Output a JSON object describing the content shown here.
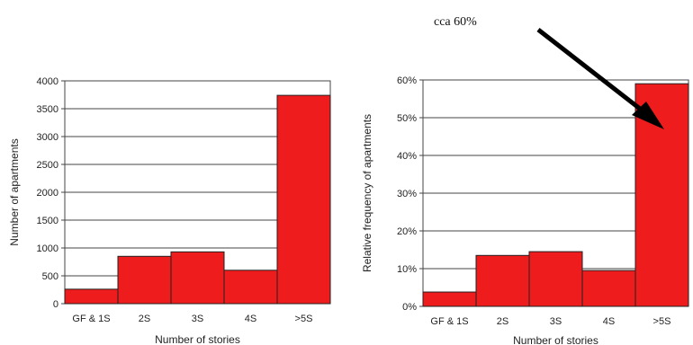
{
  "annotation": {
    "text": "cca 60%"
  },
  "colors": {
    "bar_fill": "#ee1c1c",
    "bar_stroke": "#222222",
    "grid": "#444444",
    "plot_bg": "#ffffff"
  },
  "chart_data": [
    {
      "type": "bar",
      "title": "",
      "xlabel": "Number of stories",
      "ylabel": "Number of apartments",
      "categories": [
        "GF & 1S",
        "2S",
        "3S",
        "4S",
        ">5S"
      ],
      "values": [
        260,
        850,
        930,
        600,
        3740
      ],
      "ylim": [
        0,
        4000
      ],
      "yticks": [
        0,
        500,
        1000,
        1500,
        2000,
        2500,
        3000,
        3500,
        4000
      ],
      "ytick_labels": [
        "0",
        "500",
        "1000",
        "1500",
        "2000",
        "2500",
        "3000",
        "3500",
        "4000"
      ],
      "grid": true
    },
    {
      "type": "bar",
      "title": "",
      "xlabel": "Number of stories",
      "ylabel": "Relative frequency of apartments",
      "categories": [
        "GF & 1S",
        "2S",
        "3S",
        "4S",
        ">5S"
      ],
      "values": [
        3.8,
        13.5,
        14.5,
        9.5,
        59
      ],
      "ylim": [
        0,
        60
      ],
      "yticks": [
        0,
        10,
        20,
        30,
        40,
        50,
        60
      ],
      "ytick_labels": [
        "0%",
        "10%",
        "20%",
        "30%",
        "40%",
        "50%",
        "60%"
      ],
      "grid": true
    }
  ]
}
